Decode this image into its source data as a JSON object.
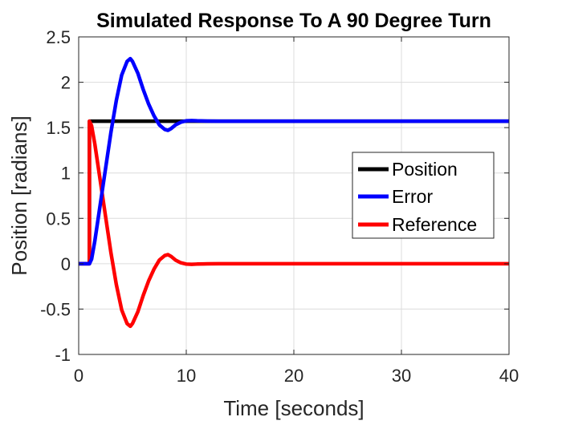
{
  "chart_data": {
    "type": "line",
    "title": "Simulated Response To A 90 Degree Turn",
    "xlabel": "Time [seconds]",
    "ylabel": "Position [radians]",
    "xlim": [
      0,
      40
    ],
    "ylim": [
      -1,
      2.5
    ],
    "xticks": [
      0,
      10,
      20,
      30,
      40
    ],
    "yticks": [
      -1,
      -0.5,
      0,
      0.5,
      1,
      1.5,
      2,
      2.5
    ],
    "xtick_labels": [
      "0",
      "10",
      "20",
      "30",
      "40"
    ],
    "ytick_labels": [
      "-1",
      "-0.5",
      "0",
      "0.5",
      "1",
      "1.5",
      "2",
      "2.5"
    ],
    "grid": true,
    "legend_position": "right-center",
    "series": [
      {
        "name": "Position",
        "color": "#000000",
        "x": [
          0,
          1.0,
          1.0,
          40
        ],
        "y": [
          0,
          0,
          1.5708,
          1.5708
        ]
      },
      {
        "name": "Error",
        "color": "#0000ff",
        "x": [
          0,
          1.0,
          1.2,
          1.5,
          2.0,
          2.5,
          3.0,
          3.5,
          4.0,
          4.5,
          4.8,
          5.0,
          5.5,
          6.0,
          6.5,
          7.0,
          7.5,
          8.0,
          8.3,
          8.6,
          9.0,
          9.5,
          10.0,
          10.5,
          11.0,
          12.0,
          13.0,
          15.0,
          20.0,
          40.0
        ],
        "y": [
          0,
          0,
          0.05,
          0.25,
          0.65,
          1.05,
          1.45,
          1.8,
          2.08,
          2.23,
          2.26,
          2.23,
          2.1,
          1.92,
          1.76,
          1.63,
          1.53,
          1.48,
          1.47,
          1.49,
          1.53,
          1.56,
          1.575,
          1.578,
          1.575,
          1.572,
          1.571,
          1.571,
          1.5708,
          1.5708
        ]
      },
      {
        "name": "Reference",
        "color": "#ff0000",
        "x": [
          0,
          1.0,
          1.0,
          1.2,
          1.5,
          2.0,
          2.5,
          3.0,
          3.5,
          4.0,
          4.5,
          4.8,
          5.0,
          5.5,
          6.0,
          6.5,
          7.0,
          7.5,
          8.0,
          8.3,
          8.6,
          9.0,
          9.5,
          10.0,
          10.5,
          11.0,
          12.0,
          13.0,
          15.0,
          20.0,
          40.0
        ],
        "y": [
          0,
          0,
          1.5708,
          1.52,
          1.32,
          0.92,
          0.52,
          0.12,
          -0.23,
          -0.51,
          -0.66,
          -0.69,
          -0.66,
          -0.53,
          -0.35,
          -0.19,
          -0.06,
          0.04,
          0.09,
          0.1,
          0.08,
          0.04,
          0.01,
          -0.004,
          -0.007,
          -0.004,
          -0.001,
          0,
          0,
          0,
          0
        ]
      }
    ]
  }
}
